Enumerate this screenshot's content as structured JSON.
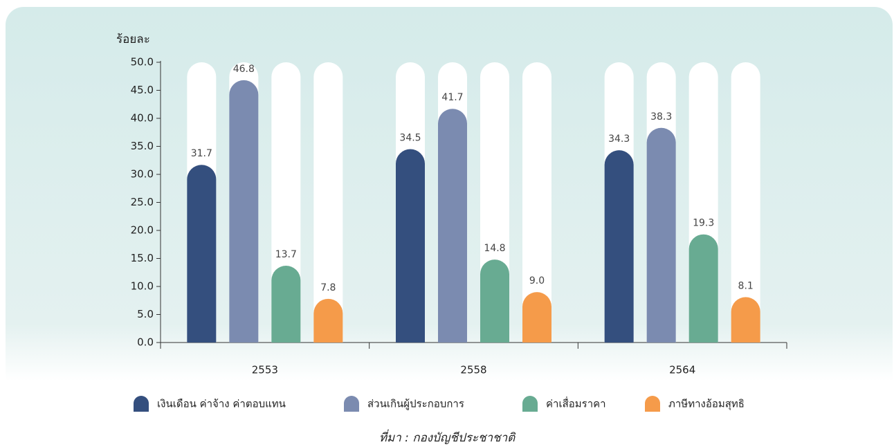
{
  "chart_data": {
    "type": "bar",
    "y_label": "ร้อยละ",
    "categories": [
      "2553",
      "2558",
      "2564"
    ],
    "series": [
      {
        "name": "เงินเดือน ค่าจ้าง ค่าตอบแทน",
        "color": "#344f7e",
        "values": [
          31.7,
          34.5,
          34.3
        ]
      },
      {
        "name": "ส่วนเกินผู้ประกอบการ",
        "color": "#7b8bb0",
        "values": [
          46.8,
          41.7,
          38.3
        ]
      },
      {
        "name": "ค่าเสื่อมราคา",
        "color": "#68ab92",
        "values": [
          13.7,
          14.8,
          19.3
        ]
      },
      {
        "name": "ภาษีทางอ้อมสุทธิ",
        "color": "#f59b4a",
        "values": [
          7.8,
          9.0,
          8.1
        ],
        "value_labels": [
          "7.8",
          "9.0",
          "8.1"
        ]
      }
    ],
    "ylim": [
      0,
      50
    ],
    "yticks": [
      {
        "value": 0,
        "label": "0.0"
      },
      {
        "value": 5,
        "label": "5.0"
      },
      {
        "value": 10,
        "label": "10.0"
      },
      {
        "value": 15,
        "label": "15.0"
      },
      {
        "value": 20,
        "label": "20.0"
      },
      {
        "value": 25,
        "label": "25.0"
      },
      {
        "value": 30,
        "label": "30.0"
      },
      {
        "value": 35,
        "label": "35.0"
      },
      {
        "value": 40,
        "label": "40.0"
      },
      {
        "value": 45,
        "label": "45.0"
      },
      {
        "value": 50,
        "label": "50.0"
      }
    ],
    "legend": "bottom",
    "source": "ที่มา : กองบัญชีประชาชาติ"
  }
}
